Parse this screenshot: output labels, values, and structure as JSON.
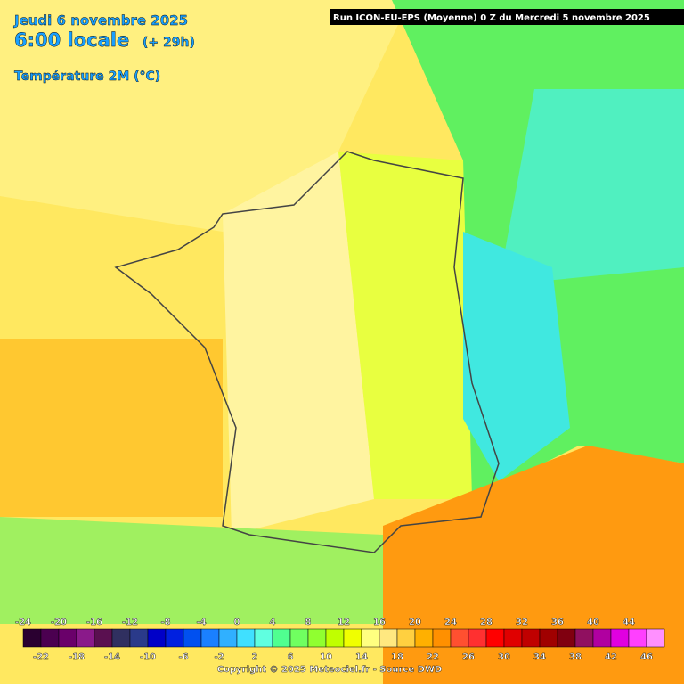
{
  "header": {
    "date": "Jeudi 6 novembre 2025",
    "time": "6:00 locale",
    "lead": "(+ 29h)",
    "field": "Température 2M (°C)",
    "run": "Run ICON-EU-EPS (Moyenne) 0 Z du Mercredi 5 novembre 2025"
  },
  "legend": {
    "labels": [
      -24,
      -22,
      -20,
      -18,
      -16,
      -14,
      -12,
      -10,
      -8,
      -6,
      -4,
      -2,
      0,
      2,
      4,
      6,
      8,
      10,
      12,
      14,
      16,
      18,
      20,
      22,
      24,
      26,
      28,
      30,
      32,
      34,
      36,
      38,
      40,
      42,
      44,
      46
    ],
    "colors": [
      "#2a0030",
      "#4b0050",
      "#6a006a",
      "#8a1a8a",
      "#5a1050",
      "#303060",
      "#2a3a8a",
      "#0000c8",
      "#0020e0",
      "#0050f0",
      "#1a80ff",
      "#30b0ff",
      "#40e0ff",
      "#60ffe0",
      "#50ff90",
      "#70ff60",
      "#90ff30",
      "#c0ff00",
      "#f0ff00",
      "#ffff80",
      "#ffe880",
      "#ffd040",
      "#ffb000",
      "#ff9000",
      "#ff5030",
      "#ff3030",
      "#ff0000",
      "#e00000",
      "#c00000",
      "#a00000",
      "#800010",
      "#901060",
      "#b000a0",
      "#e000e0",
      "#ff40ff",
      "#ff90ff"
    ]
  },
  "footer": {
    "copyright": "Copyright © 2025 Meteociel.fr - Source DWD"
  }
}
